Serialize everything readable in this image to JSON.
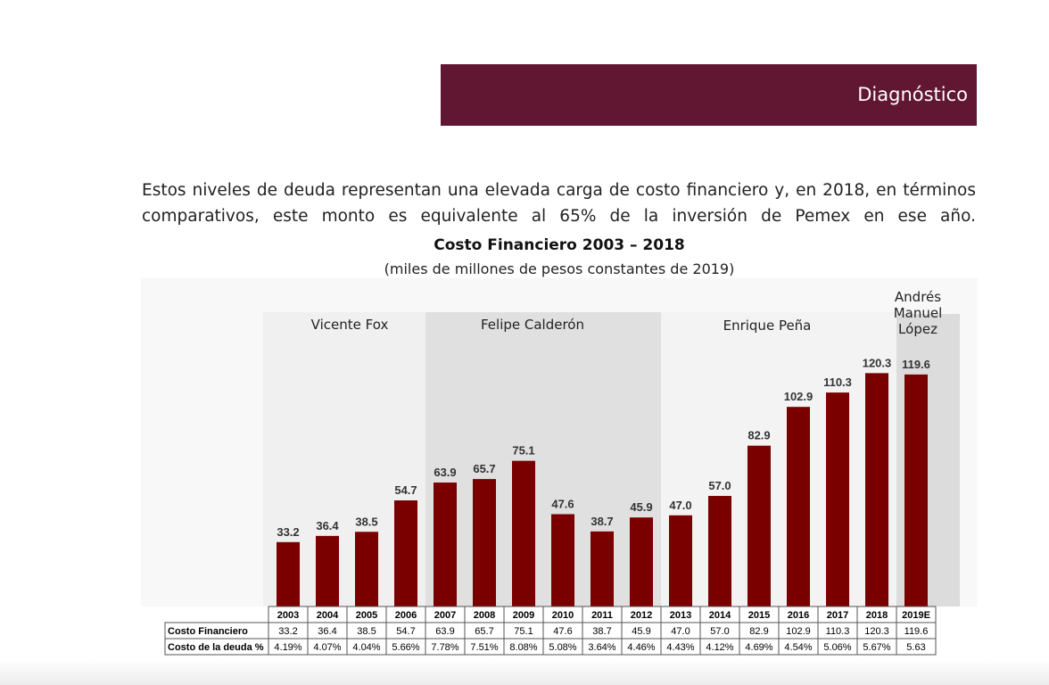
{
  "header": {
    "section_title": "Diagnóstico"
  },
  "intro": {
    "text": "Estos niveles de deuda representan una elevada carga de costo financiero y, en 2018, en términos comparativos, este monto es equivalente al 65% de la inversión de Pemex en ese año."
  },
  "chart_data": {
    "type": "bar",
    "title": "Costo Financiero 2003 – 2018",
    "subtitle": "(miles de millones de pesos constantes de 2019)",
    "categories": [
      "2003",
      "2004",
      "2005",
      "2006",
      "2007",
      "2008",
      "2009",
      "2010",
      "2011",
      "2012",
      "2013",
      "2014",
      "2015",
      "2016",
      "2017",
      "2018",
      "2019E"
    ],
    "series": [
      {
        "name": "Costo Financiero",
        "values": [
          33.2,
          36.4,
          38.5,
          54.7,
          63.9,
          65.7,
          75.1,
          47.6,
          38.7,
          45.9,
          47.0,
          57.0,
          82.9,
          102.9,
          110.3,
          120.3,
          119.6
        ]
      }
    ],
    "value_labels": [
      "33.2",
      "36.4",
      "38.5",
      "54.7",
      "63.9",
      "65.7",
      "75.1",
      "47.6",
      "38.7",
      "45.9",
      "47.0",
      "57.0",
      "82.9",
      "102.9",
      "110.3",
      "120.3",
      "119.6"
    ],
    "table_rows": [
      {
        "label": "Costo Financiero",
        "values": [
          "33.2",
          "36.4",
          "38.5",
          "54.7",
          "63.9",
          "65.7",
          "75.1",
          "47.6",
          "38.7",
          "45.9",
          "47.0",
          "57.0",
          "82.9",
          "102.9",
          "110.3",
          "120.3",
          "119.6"
        ]
      },
      {
        "label": "Costo de la deuda %",
        "values": [
          "4.19%",
          "4.07%",
          "4.04%",
          "5.66%",
          "7.78%",
          "7.51%",
          "8.08%",
          "5.08%",
          "3.64%",
          "4.46%",
          "4.43%",
          "4.12%",
          "4.69%",
          "4.54%",
          "5.06%",
          "5.67%",
          "5.63"
        ]
      }
    ],
    "periods": [
      {
        "label": "Vicente Fox",
        "start": "2003",
        "end": "2006"
      },
      {
        "label": "Felipe Calderón",
        "start": "2007",
        "end": "2012"
      },
      {
        "label": "Enrique Peña",
        "start": "2013",
        "end": "2018"
      },
      {
        "label": "Andrés Manuel López",
        "start": "2019E",
        "end": "2019E"
      }
    ],
    "ylim": [
      0,
      150
    ],
    "bar_color": "#7a0000",
    "grid": false
  }
}
